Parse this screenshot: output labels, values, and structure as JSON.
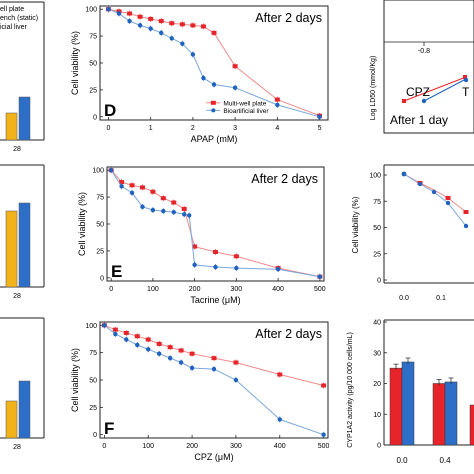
{
  "colors": {
    "red": "#e8242b",
    "blue": "#1f62c0",
    "red_line": "#f08a8a",
    "blue_line": "#7aa7db",
    "orange": "#f2b21c",
    "blue_bar": "#2d6fc8"
  },
  "left_strip": {
    "legend": [
      "ell plate",
      "ench (static)",
      "icial liver"
    ],
    "xtick": "28"
  },
  "chart_data": [
    {
      "id": "D",
      "type": "line",
      "panel_letter": "D",
      "title": "After 2 days",
      "xlabel": "APAP (mM)",
      "ylabel": "Cell viability (%)",
      "xlim": [
        -0.2,
        5.2
      ],
      "ylim": [
        -3,
        103
      ],
      "xticks": [
        0,
        1,
        2,
        3,
        4,
        5
      ],
      "yticks": [
        0,
        25,
        50,
        75,
        100
      ],
      "legend_position": "bottom-center",
      "series": [
        {
          "name": "Multi-well plate",
          "color": "red",
          "x": [
            0,
            0.25,
            0.5,
            0.75,
            1.0,
            1.25,
            1.5,
            1.75,
            2.0,
            2.25,
            2.5,
            3.0,
            4.0,
            5.0
          ],
          "y": [
            100,
            98,
            96,
            93,
            91,
            89,
            87,
            86,
            85,
            84,
            78,
            47,
            16,
            1
          ]
        },
        {
          "name": "Bioartificial liver",
          "color": "blue",
          "x": [
            0,
            0.25,
            0.5,
            0.75,
            1.0,
            1.25,
            1.5,
            1.75,
            2.0,
            2.25,
            2.5,
            3.0,
            4.0,
            5.0
          ],
          "y": [
            100,
            96,
            89,
            85,
            82,
            78,
            73,
            68,
            58,
            36,
            30,
            27,
            11,
            0
          ]
        }
      ]
    },
    {
      "id": "E",
      "type": "line",
      "panel_letter": "E",
      "title": "After 2 days",
      "xlabel": "Tacrine (μM)",
      "ylabel": "Cell viability (%)",
      "xlim": [
        -10,
        510
      ],
      "ylim": [
        -3,
        103
      ],
      "xticks": [
        0,
        100,
        200,
        300,
        400,
        500
      ],
      "yticks": [
        0,
        25,
        50,
        75,
        100
      ],
      "series": [
        {
          "name": "Multi-well plate",
          "color": "red",
          "x": [
            0,
            25,
            50,
            75,
            100,
            125,
            150,
            175,
            200,
            250,
            300,
            400,
            500
          ],
          "y": [
            100,
            89,
            86,
            84,
            80,
            74,
            70,
            64,
            29,
            24,
            20,
            9,
            1
          ]
        },
        {
          "name": "Bioartificial liver",
          "color": "blue",
          "x": [
            0,
            25,
            50,
            75,
            100,
            125,
            150,
            175,
            187,
            200,
            250,
            300,
            400,
            500
          ],
          "y": [
            100,
            85,
            79,
            66,
            63,
            62,
            61,
            59,
            58,
            12,
            10,
            9,
            8,
            1
          ]
        }
      ]
    },
    {
      "id": "F",
      "type": "line",
      "panel_letter": "F",
      "title": "After 2 days",
      "xlabel": "CPZ (μM)",
      "ylabel": "Cell viability (%)",
      "xlim": [
        -10,
        510
      ],
      "ylim": [
        -3,
        103
      ],
      "xticks": [
        0,
        100,
        200,
        300,
        400,
        500
      ],
      "yticks": [
        0,
        25,
        50,
        75,
        100
      ],
      "series": [
        {
          "name": "Multi-well plate",
          "color": "red",
          "x": [
            0,
            25,
            50,
            75,
            100,
            125,
            150,
            175,
            200,
            250,
            300,
            400,
            500
          ],
          "y": [
            100,
            96,
            93,
            90,
            87,
            83,
            80,
            77,
            74,
            70,
            66,
            55,
            45
          ]
        },
        {
          "name": "Bioartificial liver",
          "color": "blue",
          "x": [
            0,
            25,
            50,
            75,
            100,
            125,
            150,
            175,
            200,
            250,
            300,
            400,
            500
          ],
          "y": [
            100,
            92,
            87,
            82,
            78,
            74,
            70,
            66,
            61,
            60,
            50,
            14,
            0
          ]
        }
      ]
    },
    {
      "id": "right_top",
      "type": "line",
      "ylabel": "Log LD50 (mmol/Kg)",
      "xtick_label": "-0.8",
      "labels": [
        "CPZ",
        "T"
      ],
      "note": "After 1 day"
    },
    {
      "id": "right_mid",
      "type": "line",
      "ylabel": "Cell viability (%)",
      "yticks": [
        0,
        25,
        50,
        75,
        100
      ],
      "xtick_labels": [
        "0.0",
        "0.1"
      ]
    },
    {
      "id": "right_bottom",
      "type": "bar",
      "ylabel": "CYP1A2 activity (pg/10 000 cells/mL)",
      "yticks": [
        0,
        10,
        20,
        30,
        40
      ],
      "categories": [
        "0.0",
        "0.4"
      ],
      "series": [
        {
          "color": "red",
          "values": [
            25,
            20
          ]
        },
        {
          "color": "blue",
          "values": [
            27,
            20.5
          ]
        }
      ]
    }
  ]
}
